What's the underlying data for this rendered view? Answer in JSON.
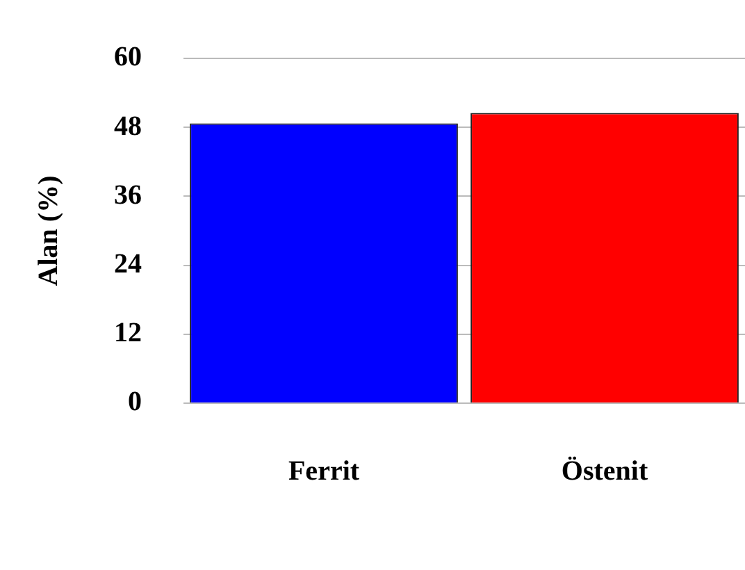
{
  "chart_data": {
    "type": "bar",
    "ylabel": "Alan (%)",
    "categories": [
      "Ferrit",
      "Östenit"
    ],
    "values": [
      48.7,
      50.5
    ],
    "colors": [
      "#0000ff",
      "#ff0000"
    ],
    "ylim": [
      0,
      60
    ],
    "yticks": [
      0,
      12,
      24,
      36,
      48,
      60
    ],
    "grid": "y",
    "legend": false
  }
}
